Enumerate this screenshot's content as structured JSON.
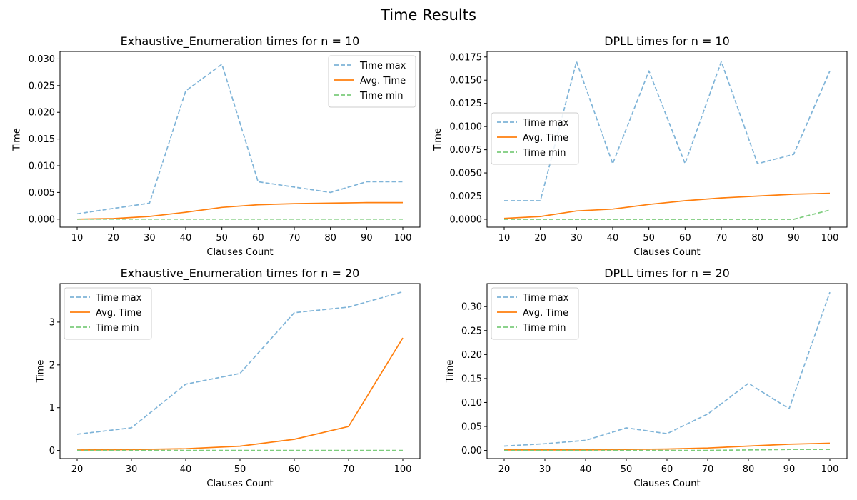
{
  "figure_title": "Time Results",
  "chart_data": [
    {
      "type": "line",
      "title": "Exhaustive_Enumeration times for n = 10",
      "xlabel": "Clauses Count",
      "ylabel": "Time",
      "x": [
        10,
        20,
        30,
        40,
        50,
        60,
        70,
        80,
        90,
        100
      ],
      "xticks": [
        "10",
        "20",
        "30",
        "40",
        "50",
        "60",
        "70",
        "80",
        "90",
        "100"
      ],
      "yticks": [
        0,
        0.005,
        0.01,
        0.015,
        0.02,
        0.025,
        0.03
      ],
      "ytick_labels": [
        "0.000",
        "0.005",
        "0.010",
        "0.015",
        "0.020",
        "0.025",
        "0.030"
      ],
      "ylim": [
        -0.0015,
        0.0314
      ],
      "legend_position": "top-right",
      "series": [
        {
          "name": "Time max",
          "color": "#7fb4d8",
          "dash": true,
          "values": [
            0.001,
            0.002,
            0.003,
            0.024,
            0.029,
            0.007,
            0.006,
            0.005,
            0.007,
            0.007
          ]
        },
        {
          "name": "Avg. Time",
          "color": "#ff7f0e",
          "dash": false,
          "values": [
            0.0,
            0.0001,
            0.0005,
            0.0013,
            0.0022,
            0.0027,
            0.0029,
            0.003,
            0.0031,
            0.0031
          ]
        },
        {
          "name": "Time min",
          "color": "#7ccc7c",
          "dash": true,
          "values": [
            0,
            0,
            0,
            0,
            0,
            0,
            0,
            0,
            0,
            0
          ]
        }
      ]
    },
    {
      "type": "line",
      "title": "DPLL times for n = 10",
      "xlabel": "Clauses Count",
      "ylabel": "Time",
      "x": [
        10,
        20,
        30,
        40,
        50,
        60,
        70,
        80,
        90,
        100
      ],
      "xticks": [
        "10",
        "20",
        "30",
        "40",
        "50",
        "60",
        "70",
        "80",
        "90",
        "100"
      ],
      "yticks": [
        0,
        0.0025,
        0.005,
        0.0075,
        0.01,
        0.0125,
        0.015,
        0.0175
      ],
      "ytick_labels": [
        "0.0000",
        "0.0025",
        "0.0050",
        "0.0075",
        "0.0100",
        "0.0125",
        "0.0150",
        "0.0175"
      ],
      "ylim": [
        -0.00085,
        0.0181
      ],
      "legend_position": "center-left",
      "series": [
        {
          "name": "Time max",
          "color": "#7fb4d8",
          "dash": true,
          "values": [
            0.002,
            0.002,
            0.017,
            0.006,
            0.016,
            0.006,
            0.017,
            0.006,
            0.007,
            0.016
          ]
        },
        {
          "name": "Avg. Time",
          "color": "#ff7f0e",
          "dash": false,
          "values": [
            0.0001,
            0.0003,
            0.0009,
            0.0011,
            0.0016,
            0.002,
            0.0023,
            0.0025,
            0.0027,
            0.0028
          ]
        },
        {
          "name": "Time min",
          "color": "#7ccc7c",
          "dash": true,
          "values": [
            0,
            0,
            0,
            0,
            0,
            0,
            0,
            0,
            0,
            0.001
          ]
        }
      ]
    },
    {
      "type": "line",
      "title": "Exhaustive_Enumeration times for n = 20",
      "xlabel": "Clauses Count",
      "ylabel": "Time",
      "x": [
        20,
        30,
        40,
        50,
        60,
        70,
        100
      ],
      "xticks": [
        "20",
        "30",
        "40",
        "50",
        "60",
        "70",
        "100"
      ],
      "yticks": [
        0,
        1,
        2,
        3
      ],
      "ytick_labels": [
        "0",
        "1",
        "2",
        "3"
      ],
      "ylim": [
        -0.19,
        3.9
      ],
      "legend_position": "top-left",
      "series": [
        {
          "name": "Time max",
          "color": "#7fb4d8",
          "dash": true,
          "values": [
            0.38,
            0.53,
            1.55,
            1.8,
            3.22,
            3.35,
            3.71
          ]
        },
        {
          "name": "Avg. Time",
          "color": "#ff7f0e",
          "dash": false,
          "values": [
            0.01,
            0.02,
            0.04,
            0.1,
            0.26,
            0.56,
            2.63
          ]
        },
        {
          "name": "Time min",
          "color": "#7ccc7c",
          "dash": true,
          "values": [
            0,
            0,
            0,
            0,
            0,
            0,
            0
          ]
        }
      ]
    },
    {
      "type": "line",
      "title": "DPLL times for n = 20",
      "xlabel": "Clauses Count",
      "ylabel": "Time",
      "x": [
        20,
        30,
        40,
        50,
        60,
        70,
        80,
        90,
        100
      ],
      "xticks": [
        "20",
        "30",
        "40",
        "50",
        "60",
        "70",
        "80",
        "90",
        "100"
      ],
      "yticks": [
        0,
        0.05,
        0.1,
        0.15,
        0.2,
        0.25,
        0.3
      ],
      "ytick_labels": [
        "0.00",
        "0.05",
        "0.10",
        "0.15",
        "0.20",
        "0.25",
        "0.30"
      ],
      "ylim": [
        -0.017,
        0.348
      ],
      "legend_position": "top-left",
      "series": [
        {
          "name": "Time max",
          "color": "#7fb4d8",
          "dash": true,
          "values": [
            0.009,
            0.014,
            0.021,
            0.047,
            0.035,
            0.076,
            0.14,
            0.087,
            0.33
          ]
        },
        {
          "name": "Avg. Time",
          "color": "#ff7f0e",
          "dash": false,
          "values": [
            0.001,
            0.001,
            0.001,
            0.002,
            0.003,
            0.005,
            0.009,
            0.013,
            0.015
          ]
        },
        {
          "name": "Time min",
          "color": "#7ccc7c",
          "dash": true,
          "values": [
            0,
            0,
            0,
            0,
            0,
            0,
            0.001,
            0.002,
            0.002
          ]
        }
      ]
    }
  ]
}
